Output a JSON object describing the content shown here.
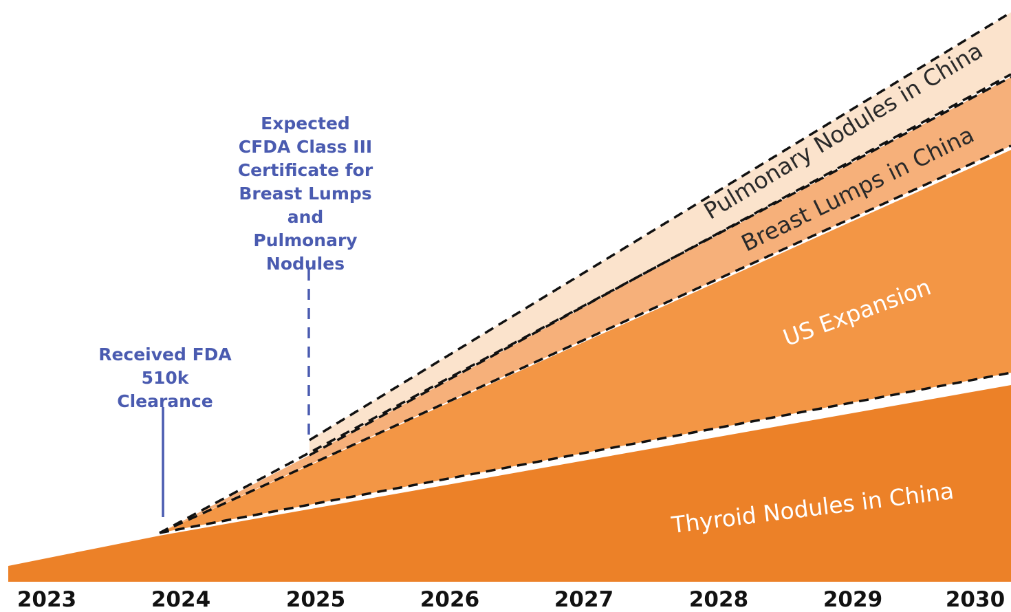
{
  "years": [
    "2023",
    "2024",
    "2025",
    "2026",
    "2027",
    "2028",
    "2029",
    "2030"
  ],
  "annotations": [
    {
      "lines": [
        "Received FDA",
        "510k",
        "Clearance"
      ]
    },
    {
      "lines": [
        "Expected",
        "CFDA Class III",
        "Certificate for",
        "Breast Lumps",
        "and",
        "Pulmonary",
        "Nodules"
      ]
    }
  ],
  "segments": [
    {
      "label": "Thyroid Nodules in China"
    },
    {
      "label": "US Expansion"
    },
    {
      "label": "Breast Lumps in China"
    },
    {
      "label": "Pulmonary Nodules in China"
    }
  ]
}
